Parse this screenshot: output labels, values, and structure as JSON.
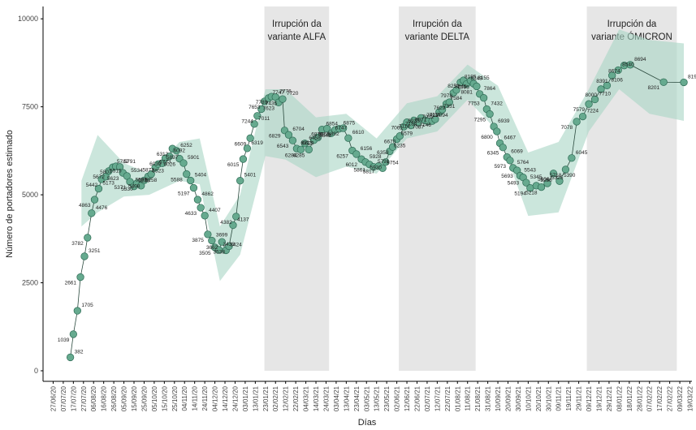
{
  "chart_data": {
    "type": "line",
    "ylabel": "Número de portadores estimado",
    "xlabel": "Días",
    "color": "#66aa8f",
    "edge_color": "#2e6b55",
    "band_color": "#a9d6c4",
    "period_color": "#e6e6e6",
    "ylim": [
      -300,
      10350
    ],
    "yticks": [
      0,
      2500,
      5000,
      7500,
      10000
    ],
    "xlim": [
      -10,
      632
    ],
    "xticks": [
      {
        "value": 0,
        "label": "27/06/20"
      },
      {
        "value": 10,
        "label": "07/07/20"
      },
      {
        "value": 20,
        "label": "17/07/20"
      },
      {
        "value": 30,
        "label": "27/07/20"
      },
      {
        "value": 40,
        "label": "06/08/20"
      },
      {
        "value": 50,
        "label": "16/08/20"
      },
      {
        "value": 60,
        "label": "26/08/20"
      },
      {
        "value": 70,
        "label": "05/09/20"
      },
      {
        "value": 80,
        "label": "15/09/20"
      },
      {
        "value": 90,
        "label": "25/09/20"
      },
      {
        "value": 100,
        "label": "05/10/20"
      },
      {
        "value": 110,
        "label": "15/10/20"
      },
      {
        "value": 120,
        "label": "25/10/20"
      },
      {
        "value": 130,
        "label": "04/11/20"
      },
      {
        "value": 140,
        "label": "14/11/20"
      },
      {
        "value": 150,
        "label": "24/11/20"
      },
      {
        "value": 160,
        "label": "04/12/20"
      },
      {
        "value": 170,
        "label": "14/12/20"
      },
      {
        "value": 180,
        "label": "24/12/20"
      },
      {
        "value": 190,
        "label": "03/01/21"
      },
      {
        "value": 200,
        "label": "13/01/21"
      },
      {
        "value": 210,
        "label": "23/01/21"
      },
      {
        "value": 220,
        "label": "02/02/21"
      },
      {
        "value": 230,
        "label": "12/02/21"
      },
      {
        "value": 240,
        "label": "22/02/21"
      },
      {
        "value": 250,
        "label": "04/03/21"
      },
      {
        "value": 260,
        "label": "14/03/21"
      },
      {
        "value": 270,
        "label": "24/03/21"
      },
      {
        "value": 280,
        "label": "03/04/21"
      },
      {
        "value": 290,
        "label": "13/04/21"
      },
      {
        "value": 300,
        "label": "23/04/21"
      },
      {
        "value": 310,
        "label": "03/05/21"
      },
      {
        "value": 320,
        "label": "13/05/21"
      },
      {
        "value": 330,
        "label": "23/05/21"
      },
      {
        "value": 340,
        "label": "02/06/21"
      },
      {
        "value": 350,
        "label": "12/06/21"
      },
      {
        "value": 360,
        "label": "22/06/21"
      },
      {
        "value": 370,
        "label": "02/07/21"
      },
      {
        "value": 380,
        "label": "12/07/21"
      },
      {
        "value": 390,
        "label": "22/07/21"
      },
      {
        "value": 400,
        "label": "01/08/21"
      },
      {
        "value": 410,
        "label": "11/08/21"
      },
      {
        "value": 420,
        "label": "21/08/21"
      },
      {
        "value": 430,
        "label": "31/08/21"
      },
      {
        "value": 440,
        "label": "10/09/21"
      },
      {
        "value": 450,
        "label": "20/09/21"
      },
      {
        "value": 460,
        "label": "30/09/21"
      },
      {
        "value": 470,
        "label": "10/10/21"
      },
      {
        "value": 480,
        "label": "20/10/21"
      },
      {
        "value": 490,
        "label": "30/10/21"
      },
      {
        "value": 500,
        "label": "09/11/21"
      },
      {
        "value": 510,
        "label": "19/11/21"
      },
      {
        "value": 520,
        "label": "29/11/21"
      },
      {
        "value": 530,
        "label": "09/12/21"
      },
      {
        "value": 540,
        "label": "19/12/21"
      },
      {
        "value": 550,
        "label": "29/12/21"
      },
      {
        "value": 560,
        "label": "08/01/22"
      },
      {
        "value": 570,
        "label": "18/01/22"
      },
      {
        "value": 580,
        "label": "28/01/22"
      },
      {
        "value": 590,
        "label": "07/02/22"
      },
      {
        "value": 600,
        "label": "17/02/22"
      },
      {
        "value": 610,
        "label": "27/02/22"
      },
      {
        "value": 620,
        "label": "09/03/22"
      },
      {
        "value": 630,
        "label": "19/03/22"
      }
    ],
    "periods": [
      {
        "label": [
          "Irrupción da",
          "variante ALFA"
        ],
        "start": 209,
        "end": 273
      },
      {
        "label": [
          "Irrupción da",
          "variante DELTA"
        ],
        "start": 342,
        "end": 418
      },
      {
        "label": [
          "Irrupción da",
          "variante ÓMICRON"
        ],
        "start": 528,
        "end": 617
      }
    ],
    "band": {
      "x": [
        28,
        44,
        70,
        95,
        125,
        145,
        165,
        185,
        210,
        230,
        260,
        290,
        320,
        350,
        380,
        410,
        440,
        470,
        500,
        530,
        560,
        590,
        624
      ],
      "lower": [
        4100,
        4500,
        4950,
        5000,
        5400,
        5300,
        2550,
        3300,
        6100,
        6000,
        5500,
        5800,
        5600,
        6600,
        6800,
        7700,
        6800,
        4400,
        4500,
        6800,
        8000,
        7300,
        7100
      ],
      "upper": [
        5400,
        6700,
        5900,
        5600,
        6500,
        6600,
        4100,
        5000,
        8000,
        8000,
        7200,
        7300,
        6600,
        7600,
        7800,
        8700,
        8100,
        6200,
        6500,
        8000,
        9700,
        9400,
        9300
      ]
    },
    "x": [
      17,
      20,
      24,
      27,
      31,
      34,
      38,
      41,
      45,
      48,
      52,
      55,
      59,
      62,
      66,
      69,
      73,
      76,
      80,
      83,
      87,
      90,
      94,
      97,
      101,
      104,
      108,
      111,
      115,
      118,
      122,
      125,
      129,
      132,
      136,
      139,
      143,
      146,
      150,
      153,
      157,
      160,
      164,
      167,
      171,
      174,
      178,
      181,
      185,
      188,
      192,
      195,
      199,
      202,
      206,
      209,
      213,
      216,
      220,
      223,
      227,
      229,
      233,
      237,
      241,
      245,
      249,
      253,
      258,
      262,
      266,
      271,
      275,
      279,
      283,
      287,
      292,
      296,
      300,
      305,
      309,
      313,
      317,
      322,
      326,
      329,
      333,
      336,
      340,
      343,
      347,
      350,
      354,
      357,
      361,
      364,
      368,
      371,
      375,
      378,
      382,
      385,
      389,
      392,
      396,
      399,
      403,
      406,
      409,
      413,
      416,
      419,
      422,
      426,
      429,
      432,
      436,
      439,
      442,
      445,
      449,
      452,
      455,
      459,
      462,
      465,
      468,
      472,
      478,
      483,
      489,
      495,
      501,
      507,
      513,
      518,
      524,
      530,
      536,
      542,
      548,
      553,
      559,
      565,
      571,
      604,
      624
    ],
    "values": [
      382,
      1039,
      1705,
      2661,
      3251,
      3782,
      4476,
      4863,
      5173,
      5442,
      5515,
      5672,
      5782,
      5807,
      5791,
      5623,
      5534,
      5371,
      5239,
      5330,
      5258,
      5408,
      5523,
      5589,
      5773,
      5872,
      5897,
      6039,
      6092,
      6312,
      6252,
      6026,
      5901,
      5588,
      5404,
      5197,
      4862,
      4633,
      4407,
      3875,
      3699,
      3505,
      3433,
      3662,
      3424,
      3538,
      4137,
      4382,
      5401,
      6015,
      6319,
      6609,
      7011,
      7244,
      7435,
      7653,
      7747,
      7789,
      7776,
      7623,
      7720,
      6829,
      6704,
      6543,
      6313,
      6284,
      6458,
      6285,
      6553,
      6629,
      6854,
      6879,
      6747,
      6843,
      6875,
      6892,
      6610,
      6257,
      6156,
      6012,
      5928,
      5861,
      5791,
      5817,
      5754,
      5930,
      6235,
      6358,
      6579,
      6670,
      6935,
      7061,
      6971,
      7114,
      7052,
      7184,
      7116,
      7087,
      7094,
      7146,
      7351,
      7421,
      7584,
      7629,
      7895,
      7978,
      8195,
      8251,
      8149,
      8245,
      8155,
      8081,
      7864,
      7753,
      7432,
      7295,
      6939,
      6800,
      6467,
      6345,
      6069,
      5973,
      5764,
      5693,
      5543,
      5493,
      5345,
      5194,
      5258,
      5218,
      5325,
      5606,
      5390,
      5718,
      6045,
      7078,
      7224,
      7579,
      7710,
      8000,
      8106,
      8391,
      8540,
      8674,
      8694,
      8201,
      8195
    ]
  }
}
